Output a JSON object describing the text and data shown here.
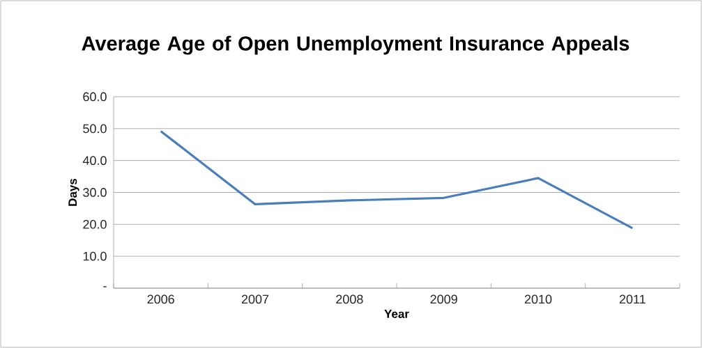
{
  "chart_data": {
    "type": "line",
    "title": "Average Age of Open Unemployment Insurance Appeals",
    "xlabel": "Year",
    "ylabel": "Days",
    "categories": [
      "2006",
      "2007",
      "2008",
      "2009",
      "2010",
      "2011"
    ],
    "series": [
      {
        "color": "#4a7ebb",
        "values": [
          49.2,
          26.3,
          27.5,
          28.3,
          34.5,
          18.8
        ]
      }
    ],
    "ylim": [
      0,
      60
    ],
    "yticks": [
      {
        "value": 0,
        "label": "-"
      },
      {
        "value": 10,
        "label": "10.0"
      },
      {
        "value": 20,
        "label": "20.0"
      },
      {
        "value": 30,
        "label": "30.0"
      },
      {
        "value": 40,
        "label": "40.0"
      },
      {
        "value": 50,
        "label": "50.0"
      },
      {
        "value": 60,
        "label": "60.0"
      }
    ],
    "grid": "y",
    "legend": false,
    "marker": "none",
    "line_style": "solid"
  }
}
